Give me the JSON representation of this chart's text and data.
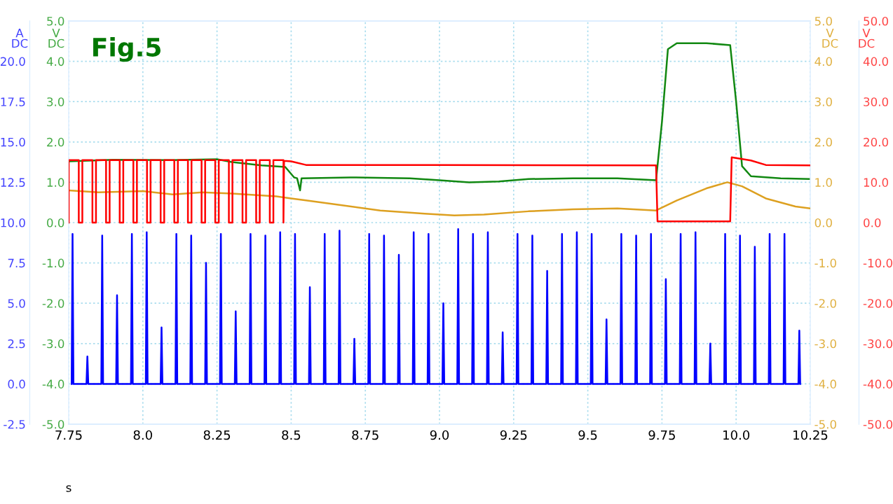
{
  "chart_data": [
    {
      "type": "line",
      "title": "Fig.5",
      "xlabel": "s",
      "ylabel": "A\nDC",
      "y2label": "V\nDC",
      "xlim": [
        7.75,
        10.25
      ],
      "xticks": [
        7.75,
        {
          "value": 8.0,
          "label": "8.0"
        },
        8.25,
        {
          "value": 8.5,
          "label": "8.5"
        },
        8.75,
        {
          "value": 9.0,
          "label": "9.0"
        },
        9.25,
        {
          "value": 9.5,
          "label": "9.5"
        },
        9.75,
        {
          "value": 10.0,
          "label": "10.0"
        },
        10.25
      ],
      "ylim": [
        -2.5,
        22.5
      ],
      "yticks": [
        -2.5,
        {
          "value": 0,
          "label": "0.0"
        },
        2.5,
        {
          "value": 5,
          "label": "5.0"
        },
        7.5,
        {
          "value": 10,
          "label": "10.0"
        },
        12.5,
        {
          "value": 15,
          "label": "15.0"
        },
        17.5,
        {
          "value": 20,
          "label": "20.0"
        }
      ],
      "y2lim": [
        -5,
        5
      ],
      "y2ticks": [
        {
          "value": -5,
          "label": "-5.0"
        },
        {
          "value": -4,
          "label": "-4.0"
        },
        {
          "value": -3,
          "label": "-3.0"
        },
        {
          "value": -2,
          "label": "-2.0"
        },
        {
          "value": -1,
          "label": "-1.0"
        },
        {
          "value": 0,
          "label": "0.0"
        },
        {
          "value": 1,
          "label": "1.0"
        },
        {
          "value": 2,
          "label": "2.0"
        },
        {
          "value": 3,
          "label": "3.0"
        },
        {
          "value": 4,
          "label": "4.0"
        },
        {
          "value": 5,
          "label": "5.0"
        }
      ],
      "grid": true,
      "series": [
        {
          "color": "#0000ff",
          "axis": "y",
          "x": [
            7.76,
            7.763,
            7.766,
            7.81,
            7.813,
            7.816,
            7.86,
            7.863,
            7.866,
            7.91,
            7.913,
            7.916,
            7.96,
            7.963,
            7.966,
            8.01,
            8.013,
            8.016,
            8.06,
            8.063,
            8.066,
            8.11,
            8.113,
            8.116,
            8.16,
            8.163,
            8.166,
            8.21,
            8.213,
            8.216,
            8.26,
            8.263,
            8.266,
            8.31,
            8.313,
            8.316,
            8.36,
            8.363,
            8.366,
            8.41,
            8.413,
            8.416,
            8.46,
            8.463,
            8.466,
            8.51,
            8.513,
            8.516,
            8.56,
            8.563,
            8.566,
            8.61,
            8.613,
            8.616,
            8.66,
            8.663,
            8.666,
            8.71,
            8.713,
            8.716,
            8.76,
            8.763,
            8.766,
            8.81,
            8.813,
            8.816,
            8.86,
            8.863,
            8.866,
            8.91,
            8.913,
            8.916,
            8.96,
            8.963,
            8.966,
            9.01,
            9.013,
            9.016,
            9.06,
            9.063,
            9.066,
            9.11,
            9.113,
            9.116,
            9.16,
            9.163,
            9.166,
            9.21,
            9.213,
            9.216,
            9.26,
            9.263,
            9.266,
            9.31,
            9.313,
            9.316,
            9.36,
            9.363,
            9.366,
            9.41,
            9.413,
            9.416,
            9.46,
            9.463,
            9.466,
            9.51,
            9.513,
            9.516,
            9.56,
            9.563,
            9.566,
            9.61,
            9.613,
            9.616,
            9.66,
            9.663,
            9.666,
            9.71,
            9.713,
            9.716,
            9.76,
            9.763,
            9.766,
            9.81,
            9.813,
            9.816,
            9.86,
            9.863,
            9.866,
            9.91,
            9.913,
            9.916,
            9.96,
            9.963,
            9.966,
            10.01,
            10.013,
            10.016,
            10.06,
            10.063,
            10.066,
            10.11,
            10.113,
            10.116,
            10.16,
            10.163,
            10.166,
            10.21,
            10.213,
            10.216
          ],
          "values": [
            0,
            9.3,
            0,
            0,
            1.7,
            0,
            0,
            9.2,
            0,
            0,
            5.5,
            0,
            0,
            9.3,
            0,
            0,
            9.4,
            0,
            0,
            3.5,
            0,
            0,
            9.3,
            0,
            0,
            9.2,
            0,
            0,
            7.5,
            0,
            0,
            9.3,
            0,
            0,
            4.5,
            0,
            0,
            9.3,
            0,
            0,
            9.2,
            0,
            0,
            9.4,
            0,
            0,
            9.3,
            0,
            0,
            6.0,
            0,
            0,
            9.3,
            0,
            0,
            9.5,
            0,
            0,
            2.8,
            0,
            0,
            9.3,
            0,
            0,
            9.2,
            0,
            0,
            8.0,
            0,
            0,
            9.4,
            0,
            0,
            9.3,
            0,
            0,
            5.0,
            0,
            0,
            9.6,
            0,
            0,
            9.3,
            0,
            0,
            9.4,
            0,
            0,
            3.2,
            0,
            0,
            9.3,
            0,
            0,
            9.2,
            0,
            0,
            7.0,
            0,
            0,
            9.3,
            0,
            0,
            9.4,
            0,
            0,
            9.3,
            0,
            0,
            4.0,
            0,
            0,
            9.3,
            0,
            0,
            9.2,
            0,
            0,
            9.3,
            0,
            0,
            6.5,
            0,
            0,
            9.3,
            0,
            0,
            9.4,
            0,
            0,
            2.5,
            0,
            0,
            9.3,
            0,
            0,
            9.2,
            0,
            0,
            8.5,
            0,
            0,
            9.3,
            0,
            0,
            9.3,
            0,
            0,
            3.3,
            0
          ]
        },
        {
          "color": "#118811",
          "axis": "y2",
          "x": [
            7.75,
            7.9,
            8.1,
            8.25,
            8.3,
            8.4,
            8.48,
            8.51,
            8.52,
            8.53,
            8.535,
            8.7,
            8.9,
            9.0,
            9.1,
            9.2,
            9.3,
            9.45,
            9.6,
            9.73,
            9.75,
            9.77,
            9.8,
            9.9,
            9.98,
            10.0,
            10.02,
            10.05,
            10.15,
            10.25
          ],
          "values": [
            1.52,
            1.56,
            1.55,
            1.57,
            1.5,
            1.42,
            1.38,
            1.12,
            1.1,
            0.8,
            1.1,
            1.12,
            1.1,
            1.05,
            1.0,
            1.02,
            1.08,
            1.1,
            1.1,
            1.05,
            2.5,
            4.3,
            4.45,
            4.45,
            4.4,
            3.0,
            1.4,
            1.15,
            1.1,
            1.08
          ]
        }
      ]
    },
    {
      "type": "line",
      "ylabel": "V\nDC",
      "y2label": "V\nDC",
      "tick_labels": "y",
      "xlim": [
        7.75,
        10.25
      ],
      "ylim": [
        -5,
        5
      ],
      "yticks": [
        {
          "value": -5,
          "label": "-5.0"
        },
        {
          "value": -4,
          "label": "-4.0"
        },
        {
          "value": -3,
          "label": "-3.0"
        },
        {
          "value": -2,
          "label": "-2.0"
        },
        {
          "value": -1,
          "label": "-1.0"
        },
        {
          "value": 0,
          "label": "0.0"
        },
        {
          "value": 1,
          "label": "1.0"
        },
        {
          "value": 2,
          "label": "2.0"
        },
        {
          "value": 3,
          "label": "3.0"
        },
        {
          "value": 4,
          "label": "4.0"
        },
        {
          "value": 5,
          "label": "5.0"
        }
      ],
      "y2lim": [
        -50,
        50
      ],
      "y2ticks": [
        {
          "value": -50,
          "label": "-50.0"
        },
        {
          "value": -40,
          "label": "-40.0"
        },
        {
          "value": -30,
          "label": "-30.0"
        },
        {
          "value": -20,
          "label": "-20.0"
        },
        {
          "value": -10,
          "label": "-10.0"
        },
        {
          "value": 0,
          "label": "0.0"
        },
        {
          "value": 10,
          "label": "10.0"
        },
        {
          "value": 20,
          "label": "20.0"
        },
        {
          "value": 30,
          "label": "30.0"
        },
        {
          "value": 40,
          "label": "40.0"
        },
        {
          "value": 50,
          "label": "50.0"
        }
      ],
      "series": [
        {
          "color": "#ff0000",
          "axis": "y2",
          "x": [
            7.75,
            7.75,
            7.784,
            7.784,
            7.796,
            7.796,
            7.83,
            7.83,
            7.842,
            7.842,
            7.876,
            7.876,
            7.888,
            7.888,
            7.922,
            7.922,
            7.934,
            7.934,
            7.968,
            7.968,
            7.98,
            7.98,
            8.014,
            8.014,
            8.026,
            8.026,
            8.06,
            8.06,
            8.072,
            8.072,
            8.106,
            8.106,
            8.118,
            8.118,
            8.152,
            8.152,
            8.164,
            8.164,
            8.198,
            8.198,
            8.21,
            8.21,
            8.244,
            8.244,
            8.256,
            8.256,
            8.29,
            8.29,
            8.302,
            8.302,
            8.336,
            8.336,
            8.348,
            8.348,
            8.382,
            8.382,
            8.394,
            8.394,
            8.428,
            8.428,
            8.44,
            8.44,
            8.474,
            8.474,
            8.476,
            8.5,
            8.55,
            9.0,
            9.73,
            9.735,
            9.98,
            9.985,
            10.05,
            10.1,
            10.25
          ],
          "values": [
            0,
            15.5,
            15.5,
            0,
            0,
            15.5,
            15.5,
            0,
            0,
            15.5,
            15.5,
            0,
            0,
            15.5,
            15.5,
            0,
            0,
            15.5,
            15.5,
            0,
            0,
            15.5,
            15.5,
            0,
            0,
            15.5,
            15.5,
            0,
            0,
            15.5,
            15.5,
            0,
            0,
            15.5,
            15.5,
            0,
            0,
            15.5,
            15.5,
            0,
            0,
            15.5,
            15.5,
            0,
            0,
            15.5,
            15.5,
            0,
            0,
            15.5,
            15.5,
            0,
            0,
            15.5,
            15.5,
            0,
            0,
            15.5,
            15.5,
            0,
            0,
            15.5,
            15.5,
            0,
            15.3,
            15.2,
            14.3,
            14.3,
            14.2,
            0.3,
            0.3,
            16.2,
            15.4,
            14.3,
            14.2
          ]
        },
        {
          "color": "#dda020",
          "axis": "y",
          "x": [
            7.75,
            7.85,
            8.0,
            8.1,
            8.2,
            8.3,
            8.45,
            8.5,
            8.55,
            8.65,
            8.8,
            8.95,
            9.05,
            9.15,
            9.3,
            9.45,
            9.6,
            9.73,
            9.8,
            9.9,
            9.97,
            10.02,
            10.1,
            10.2,
            10.25
          ],
          "values": [
            0.8,
            0.75,
            0.78,
            0.7,
            0.75,
            0.72,
            0.65,
            0.6,
            0.55,
            0.45,
            0.3,
            0.22,
            0.18,
            0.2,
            0.28,
            0.33,
            0.35,
            0.3,
            0.55,
            0.85,
            1.0,
            0.9,
            0.6,
            0.4,
            0.35
          ]
        }
      ]
    }
  ]
}
